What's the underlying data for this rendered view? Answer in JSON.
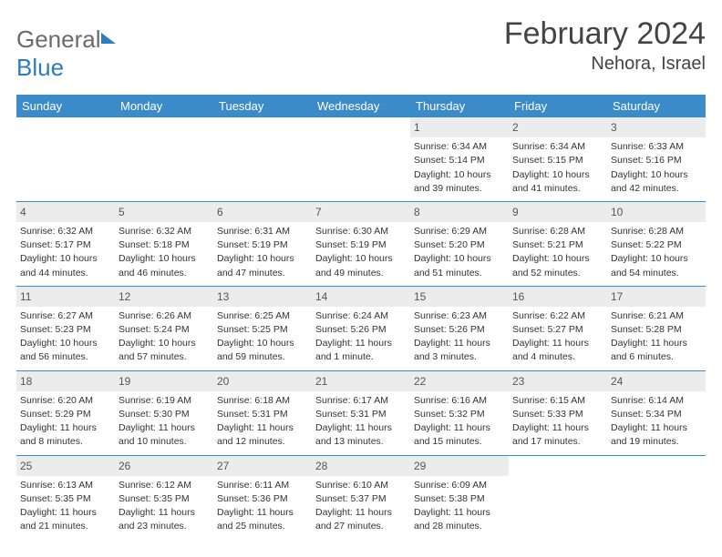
{
  "brand": {
    "part1": "General",
    "part2": "Blue"
  },
  "title": "February 2024",
  "location": "Nehora, Israel",
  "colors": {
    "header_bg": "#3b8bc9",
    "header_text": "#ffffff",
    "daynum_bg": "#ececec",
    "row_divider": "#3b8bc9",
    "brand_grey": "#6b6b6b",
    "brand_blue": "#2e7cc0"
  },
  "weekdays": [
    "Sunday",
    "Monday",
    "Tuesday",
    "Wednesday",
    "Thursday",
    "Friday",
    "Saturday"
  ],
  "weeks": [
    [
      {
        "empty": true
      },
      {
        "empty": true
      },
      {
        "empty": true
      },
      {
        "empty": true
      },
      {
        "n": "1",
        "sunrise": "Sunrise: 6:34 AM",
        "sunset": "Sunset: 5:14 PM",
        "day1": "Daylight: 10 hours",
        "day2": "and 39 minutes."
      },
      {
        "n": "2",
        "sunrise": "Sunrise: 6:34 AM",
        "sunset": "Sunset: 5:15 PM",
        "day1": "Daylight: 10 hours",
        "day2": "and 41 minutes."
      },
      {
        "n": "3",
        "sunrise": "Sunrise: 6:33 AM",
        "sunset": "Sunset: 5:16 PM",
        "day1": "Daylight: 10 hours",
        "day2": "and 42 minutes."
      }
    ],
    [
      {
        "n": "4",
        "sunrise": "Sunrise: 6:32 AM",
        "sunset": "Sunset: 5:17 PM",
        "day1": "Daylight: 10 hours",
        "day2": "and 44 minutes."
      },
      {
        "n": "5",
        "sunrise": "Sunrise: 6:32 AM",
        "sunset": "Sunset: 5:18 PM",
        "day1": "Daylight: 10 hours",
        "day2": "and 46 minutes."
      },
      {
        "n": "6",
        "sunrise": "Sunrise: 6:31 AM",
        "sunset": "Sunset: 5:19 PM",
        "day1": "Daylight: 10 hours",
        "day2": "and 47 minutes."
      },
      {
        "n": "7",
        "sunrise": "Sunrise: 6:30 AM",
        "sunset": "Sunset: 5:19 PM",
        "day1": "Daylight: 10 hours",
        "day2": "and 49 minutes."
      },
      {
        "n": "8",
        "sunrise": "Sunrise: 6:29 AM",
        "sunset": "Sunset: 5:20 PM",
        "day1": "Daylight: 10 hours",
        "day2": "and 51 minutes."
      },
      {
        "n": "9",
        "sunrise": "Sunrise: 6:28 AM",
        "sunset": "Sunset: 5:21 PM",
        "day1": "Daylight: 10 hours",
        "day2": "and 52 minutes."
      },
      {
        "n": "10",
        "sunrise": "Sunrise: 6:28 AM",
        "sunset": "Sunset: 5:22 PM",
        "day1": "Daylight: 10 hours",
        "day2": "and 54 minutes."
      }
    ],
    [
      {
        "n": "11",
        "sunrise": "Sunrise: 6:27 AM",
        "sunset": "Sunset: 5:23 PM",
        "day1": "Daylight: 10 hours",
        "day2": "and 56 minutes."
      },
      {
        "n": "12",
        "sunrise": "Sunrise: 6:26 AM",
        "sunset": "Sunset: 5:24 PM",
        "day1": "Daylight: 10 hours",
        "day2": "and 57 minutes."
      },
      {
        "n": "13",
        "sunrise": "Sunrise: 6:25 AM",
        "sunset": "Sunset: 5:25 PM",
        "day1": "Daylight: 10 hours",
        "day2": "and 59 minutes."
      },
      {
        "n": "14",
        "sunrise": "Sunrise: 6:24 AM",
        "sunset": "Sunset: 5:26 PM",
        "day1": "Daylight: 11 hours",
        "day2": "and 1 minute."
      },
      {
        "n": "15",
        "sunrise": "Sunrise: 6:23 AM",
        "sunset": "Sunset: 5:26 PM",
        "day1": "Daylight: 11 hours",
        "day2": "and 3 minutes."
      },
      {
        "n": "16",
        "sunrise": "Sunrise: 6:22 AM",
        "sunset": "Sunset: 5:27 PM",
        "day1": "Daylight: 11 hours",
        "day2": "and 4 minutes."
      },
      {
        "n": "17",
        "sunrise": "Sunrise: 6:21 AM",
        "sunset": "Sunset: 5:28 PM",
        "day1": "Daylight: 11 hours",
        "day2": "and 6 minutes."
      }
    ],
    [
      {
        "n": "18",
        "sunrise": "Sunrise: 6:20 AM",
        "sunset": "Sunset: 5:29 PM",
        "day1": "Daylight: 11 hours",
        "day2": "and 8 minutes."
      },
      {
        "n": "19",
        "sunrise": "Sunrise: 6:19 AM",
        "sunset": "Sunset: 5:30 PM",
        "day1": "Daylight: 11 hours",
        "day2": "and 10 minutes."
      },
      {
        "n": "20",
        "sunrise": "Sunrise: 6:18 AM",
        "sunset": "Sunset: 5:31 PM",
        "day1": "Daylight: 11 hours",
        "day2": "and 12 minutes."
      },
      {
        "n": "21",
        "sunrise": "Sunrise: 6:17 AM",
        "sunset": "Sunset: 5:31 PM",
        "day1": "Daylight: 11 hours",
        "day2": "and 13 minutes."
      },
      {
        "n": "22",
        "sunrise": "Sunrise: 6:16 AM",
        "sunset": "Sunset: 5:32 PM",
        "day1": "Daylight: 11 hours",
        "day2": "and 15 minutes."
      },
      {
        "n": "23",
        "sunrise": "Sunrise: 6:15 AM",
        "sunset": "Sunset: 5:33 PM",
        "day1": "Daylight: 11 hours",
        "day2": "and 17 minutes."
      },
      {
        "n": "24",
        "sunrise": "Sunrise: 6:14 AM",
        "sunset": "Sunset: 5:34 PM",
        "day1": "Daylight: 11 hours",
        "day2": "and 19 minutes."
      }
    ],
    [
      {
        "n": "25",
        "sunrise": "Sunrise: 6:13 AM",
        "sunset": "Sunset: 5:35 PM",
        "day1": "Daylight: 11 hours",
        "day2": "and 21 minutes."
      },
      {
        "n": "26",
        "sunrise": "Sunrise: 6:12 AM",
        "sunset": "Sunset: 5:35 PM",
        "day1": "Daylight: 11 hours",
        "day2": "and 23 minutes."
      },
      {
        "n": "27",
        "sunrise": "Sunrise: 6:11 AM",
        "sunset": "Sunset: 5:36 PM",
        "day1": "Daylight: 11 hours",
        "day2": "and 25 minutes."
      },
      {
        "n": "28",
        "sunrise": "Sunrise: 6:10 AM",
        "sunset": "Sunset: 5:37 PM",
        "day1": "Daylight: 11 hours",
        "day2": "and 27 minutes."
      },
      {
        "n": "29",
        "sunrise": "Sunrise: 6:09 AM",
        "sunset": "Sunset: 5:38 PM",
        "day1": "Daylight: 11 hours",
        "day2": "and 28 minutes."
      },
      {
        "empty": true
      },
      {
        "empty": true
      }
    ]
  ]
}
